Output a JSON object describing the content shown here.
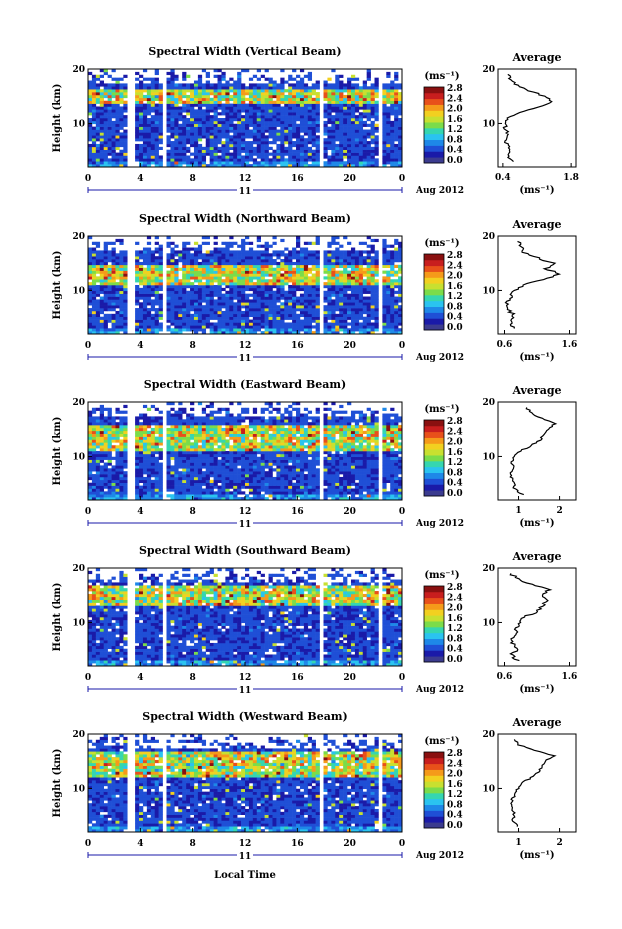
{
  "figure": {
    "xlabel": "Local Time",
    "date_label": "Aug 2012",
    "day_label": "11",
    "colorbar_unit": "(ms⁻¹)",
    "colorbar_ticks": [
      "0.0",
      "0.4",
      "0.8",
      "1.2",
      "1.6",
      "2.0",
      "2.4",
      "2.8"
    ],
    "colorbar_colors": [
      "#3b3b8f",
      "#1a1aa8",
      "#1f4fd6",
      "#1e88e8",
      "#2ac3f0",
      "#35d6b0",
      "#7bdc4a",
      "#c8e030",
      "#f2d020",
      "#f59a1a",
      "#e8501a",
      "#c81e1e",
      "#8a1010"
    ],
    "profile_title": "Average",
    "profile_xlabel": "(ms⁻¹)",
    "gap_color": "#ffffff"
  },
  "chart_data": [
    {
      "type": "heatmap",
      "title": "Spectral Width (Vertical Beam)",
      "xlabel": "",
      "ylabel": "Height (km)",
      "x_ticks": [
        "0",
        "4",
        "8",
        "12",
        "16",
        "20",
        "0"
      ],
      "y_ticks": [
        "10",
        "20"
      ],
      "xlim": [
        0,
        24
      ],
      "ylim": [
        2,
        20
      ],
      "clim": [
        0.0,
        3.0
      ],
      "data_gaps_hours": [
        [
          3.1,
          3.5
        ],
        [
          5.6,
          5.9
        ],
        [
          17.6,
          17.9
        ],
        [
          22.3,
          22.6
        ]
      ],
      "enhanced_layer_km": [
        13.5,
        16.5
      ],
      "profile": {
        "title": "Average",
        "x_ticks": [
          "0.4",
          "1.8"
        ],
        "xlim": [
          0.3,
          1.9
        ],
        "y_ticks": [
          "10",
          "20"
        ],
        "heights_km": [
          3,
          4,
          5,
          6,
          7,
          8,
          9,
          10,
          11,
          12,
          13,
          14,
          15,
          16,
          17,
          18,
          19
        ],
        "values": [
          0.6,
          0.5,
          0.55,
          0.5,
          0.45,
          0.5,
          0.45,
          0.45,
          0.5,
          0.75,
          1.1,
          1.4,
          1.25,
          0.95,
          0.7,
          0.55,
          0.5
        ]
      }
    },
    {
      "type": "heatmap",
      "title": "Spectral Width (Northward Beam)",
      "xlabel": "",
      "ylabel": "Height (km)",
      "x_ticks": [
        "0",
        "4",
        "8",
        "12",
        "16",
        "20",
        "0"
      ],
      "y_ticks": [
        "10",
        "20"
      ],
      "xlim": [
        0,
        24
      ],
      "ylim": [
        2,
        20
      ],
      "clim": [
        0.0,
        3.0
      ],
      "data_gaps_hours": [
        [
          3.1,
          3.5
        ],
        [
          5.6,
          5.9
        ],
        [
          17.6,
          17.9
        ],
        [
          22.3,
          22.6
        ]
      ],
      "enhanced_layer_km": [
        11.0,
        14.5
      ],
      "profile": {
        "title": "Average",
        "x_ticks": [
          "0.6",
          "1.6"
        ],
        "xlim": [
          0.5,
          1.7
        ],
        "y_ticks": [
          "10",
          "20"
        ],
        "heights_km": [
          3,
          4,
          5,
          6,
          7,
          8,
          9,
          10,
          11,
          12,
          13,
          14,
          15,
          16,
          17,
          18,
          19
        ],
        "values": [
          0.75,
          0.7,
          0.75,
          0.7,
          0.65,
          0.65,
          0.7,
          0.75,
          0.9,
          1.2,
          1.45,
          1.25,
          1.35,
          1.1,
          0.9,
          0.85,
          0.8
        ]
      }
    },
    {
      "type": "heatmap",
      "title": "Spectral Width (Eastward Beam)",
      "xlabel": "",
      "ylabel": "Height (km)",
      "x_ticks": [
        "0",
        "4",
        "8",
        "12",
        "16",
        "20",
        "0"
      ],
      "y_ticks": [
        "10",
        "20"
      ],
      "xlim": [
        0,
        24
      ],
      "ylim": [
        2,
        20
      ],
      "clim": [
        0.0,
        3.0
      ],
      "data_gaps_hours": [
        [
          3.1,
          3.5
        ],
        [
          5.6,
          5.9
        ],
        [
          17.6,
          17.9
        ],
        [
          22.3,
          22.6
        ]
      ],
      "enhanced_layer_km": [
        11.0,
        16.0
      ],
      "profile": {
        "title": "Average",
        "x_ticks": [
          "1",
          "2"
        ],
        "xlim": [
          0.5,
          2.4
        ],
        "y_ticks": [
          "10",
          "20"
        ],
        "heights_km": [
          3,
          4,
          5,
          6,
          7,
          8,
          9,
          10,
          11,
          12,
          13,
          14,
          15,
          16,
          17,
          18,
          19
        ],
        "values": [
          1.1,
          0.9,
          0.9,
          0.85,
          0.8,
          0.85,
          0.85,
          0.9,
          1.05,
          1.3,
          1.55,
          1.6,
          1.7,
          1.9,
          1.55,
          1.3,
          1.2
        ]
      }
    },
    {
      "type": "heatmap",
      "title": "Spectral Width (Southward Beam)",
      "xlabel": "",
      "ylabel": "Height (km)",
      "x_ticks": [
        "0",
        "4",
        "8",
        "12",
        "16",
        "20",
        "0"
      ],
      "y_ticks": [
        "10",
        "20"
      ],
      "xlim": [
        0,
        24
      ],
      "ylim": [
        2,
        20
      ],
      "clim": [
        0.0,
        3.0
      ],
      "data_gaps_hours": [
        [
          3.1,
          3.5
        ],
        [
          5.6,
          5.9
        ],
        [
          17.6,
          17.9
        ],
        [
          22.3,
          22.6
        ]
      ],
      "enhanced_layer_km": [
        13.0,
        17.0
      ],
      "profile": {
        "title": "Average",
        "x_ticks": [
          "0.6",
          "1.6"
        ],
        "xlim": [
          0.5,
          1.7
        ],
        "y_ticks": [
          "10",
          "20"
        ],
        "heights_km": [
          3,
          4,
          5,
          6,
          7,
          8,
          9,
          10,
          11,
          12,
          13,
          14,
          15,
          16,
          17,
          18,
          19
        ],
        "values": [
          0.8,
          0.7,
          0.8,
          0.75,
          0.7,
          0.75,
          0.8,
          0.85,
          0.9,
          1.1,
          1.2,
          1.25,
          1.15,
          1.3,
          1.0,
          0.8,
          0.7
        ]
      }
    },
    {
      "type": "heatmap",
      "title": "Spectral Width (Westward Beam)",
      "xlabel": "Local Time",
      "ylabel": "Height (km)",
      "x_ticks": [
        "0",
        "4",
        "8",
        "12",
        "16",
        "20",
        "0"
      ],
      "y_ticks": [
        "10",
        "20"
      ],
      "xlim": [
        0,
        24
      ],
      "ylim": [
        2,
        20
      ],
      "clim": [
        0.0,
        3.0
      ],
      "data_gaps_hours": [
        [
          3.1,
          3.5
        ],
        [
          5.6,
          5.9
        ],
        [
          17.6,
          17.9
        ],
        [
          22.3,
          22.6
        ]
      ],
      "enhanced_layer_km": [
        12.0,
        17.0
      ],
      "profile": {
        "title": "Average",
        "x_ticks": [
          "1",
          "2"
        ],
        "xlim": [
          0.5,
          2.4
        ],
        "y_ticks": [
          "10",
          "20"
        ],
        "heights_km": [
          3,
          4,
          5,
          6,
          7,
          8,
          9,
          10,
          11,
          12,
          13,
          14,
          15,
          16,
          17,
          18,
          19
        ],
        "values": [
          1.0,
          0.85,
          0.9,
          0.85,
          0.8,
          0.85,
          0.9,
          1.0,
          1.1,
          1.3,
          1.5,
          1.55,
          1.65,
          1.85,
          1.4,
          1.0,
          0.9
        ]
      }
    }
  ]
}
